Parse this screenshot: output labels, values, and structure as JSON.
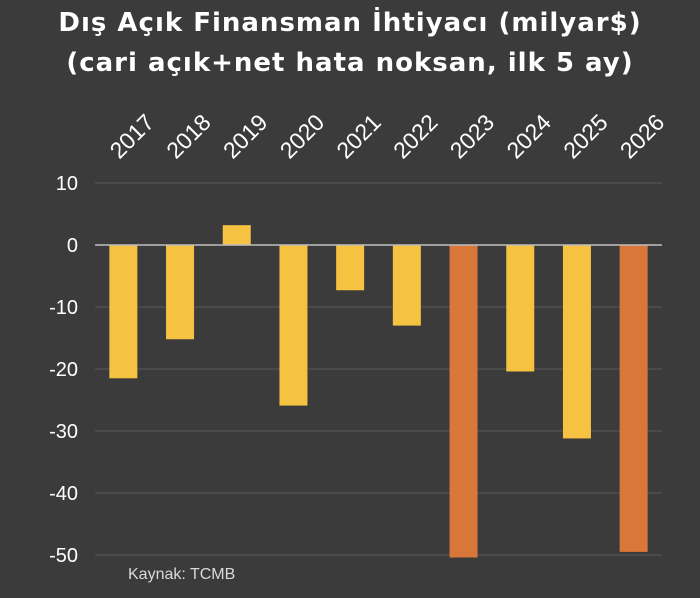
{
  "chart_data": {
    "type": "bar",
    "title": "Dış Açık Finansman İhtiyacı (milyar$)",
    "subtitle": "(cari açık+net hata noksan, ilk 5 ay)",
    "categories": [
      "2017",
      "2018",
      "2019",
      "2020",
      "2021",
      "2022",
      "2023",
      "2024",
      "2025",
      "2026"
    ],
    "values": [
      -21.5,
      -15.2,
      3.2,
      -25.9,
      -7.3,
      -13.0,
      -50.4,
      -20.4,
      -31.2,
      -49.5
    ],
    "bar_colors": [
      "#f5c242",
      "#f5c242",
      "#f5c242",
      "#f5c242",
      "#f5c242",
      "#f5c242",
      "#d9773b",
      "#f5c242",
      "#f5c242",
      "#d9773b"
    ],
    "yticks": [
      "10",
      "0",
      "-10",
      "-20",
      "-30",
      "-40",
      "-50"
    ],
    "ylim": [
      -50,
      10
    ],
    "grid": true,
    "xlabel": "",
    "ylabel": "",
    "source": "Kaynak: TCMB"
  },
  "colors": {
    "background": "#3b3b3b",
    "grid": "#5a5a5a",
    "zero_line": "#bfbfbf",
    "text": "#ffffff"
  }
}
